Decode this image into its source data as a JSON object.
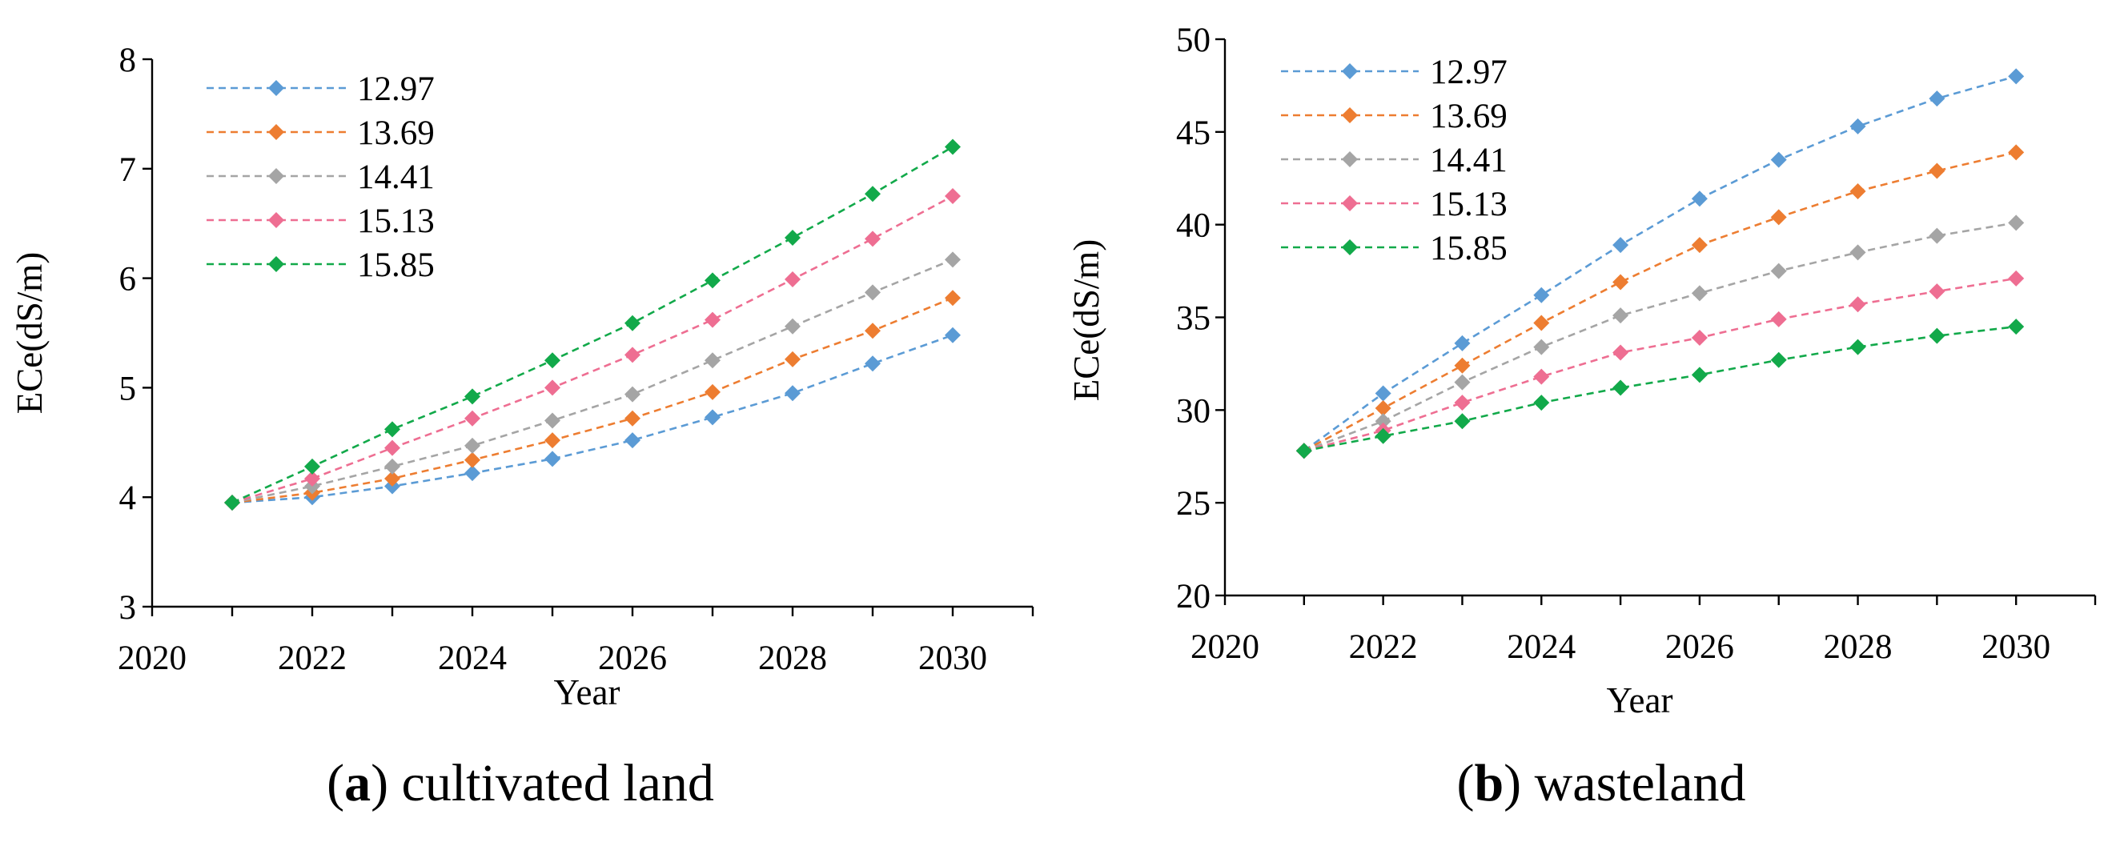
{
  "colors": {
    "blue": "#5B9BD5",
    "orange": "#ED7D31",
    "gray": "#A5A5A5",
    "pink": "#EE6E92",
    "green": "#12A94A"
  },
  "chart_data": [
    {
      "type": "line",
      "caption_letter": "a",
      "caption_rest": " cultivated land",
      "caption_open": "(",
      "caption_close": ")",
      "xlabel": "Year",
      "ylabel": "ECe(dS/m)",
      "xlim": [
        2020,
        2031
      ],
      "ylim": [
        3,
        8
      ],
      "xticks": [
        2020,
        2022,
        2024,
        2026,
        2028,
        2030
      ],
      "yticks": [
        3,
        4,
        5,
        6,
        7,
        8
      ],
      "legend_position": "top-left",
      "x": [
        2021,
        2022,
        2023,
        2024,
        2025,
        2026,
        2027,
        2028,
        2029,
        2030
      ],
      "series": [
        {
          "name": "12.97",
          "color": "#5B9BD5",
          "values": [
            3.95,
            4.0,
            4.1,
            4.22,
            4.35,
            4.52,
            4.73,
            4.95,
            5.22,
            5.48
          ]
        },
        {
          "name": "13.69",
          "color": "#ED7D31",
          "values": [
            3.95,
            4.04,
            4.17,
            4.34,
            4.52,
            4.72,
            4.96,
            5.26,
            5.52,
            5.82
          ]
        },
        {
          "name": "14.41",
          "color": "#A5A5A5",
          "values": [
            3.95,
            4.1,
            4.28,
            4.47,
            4.7,
            4.94,
            5.25,
            5.56,
            5.87,
            6.17
          ]
        },
        {
          "name": "15.13",
          "color": "#EE6E92",
          "values": [
            3.95,
            4.17,
            4.45,
            4.72,
            5.0,
            5.3,
            5.62,
            5.99,
            6.36,
            6.75
          ]
        },
        {
          "name": "15.85",
          "color": "#12A94A",
          "values": [
            3.95,
            4.28,
            4.62,
            4.92,
            5.25,
            5.59,
            5.98,
            6.37,
            6.77,
            7.2
          ]
        }
      ]
    },
    {
      "type": "line",
      "caption_letter": "b",
      "caption_rest": " wasteland",
      "caption_open": "(",
      "caption_close": ")",
      "xlabel": "Year",
      "ylabel": "ECe(dS/m)",
      "xlim": [
        2020,
        2031
      ],
      "ylim": [
        20,
        50
      ],
      "xticks": [
        2020,
        2022,
        2024,
        2026,
        2028,
        2030
      ],
      "yticks": [
        20,
        25,
        30,
        35,
        40,
        45,
        50
      ],
      "legend_position": "top-left",
      "x": [
        2021,
        2022,
        2023,
        2024,
        2025,
        2026,
        2027,
        2028,
        2029,
        2030
      ],
      "series": [
        {
          "name": "12.97",
          "color": "#5B9BD5",
          "values": [
            27.8,
            30.9,
            33.6,
            36.2,
            38.9,
            41.4,
            43.5,
            45.3,
            46.8,
            48.0
          ]
        },
        {
          "name": "13.69",
          "color": "#ED7D31",
          "values": [
            27.8,
            30.1,
            32.4,
            34.7,
            36.9,
            38.9,
            40.4,
            41.8,
            42.9,
            43.9
          ]
        },
        {
          "name": "14.41",
          "color": "#A5A5A5",
          "values": [
            27.8,
            29.4,
            31.5,
            33.4,
            35.1,
            36.3,
            37.5,
            38.5,
            39.4,
            40.1
          ]
        },
        {
          "name": "15.13",
          "color": "#EE6E92",
          "values": [
            27.8,
            28.9,
            30.4,
            31.8,
            33.1,
            33.9,
            34.9,
            35.7,
            36.4,
            37.1
          ]
        },
        {
          "name": "15.85",
          "color": "#12A94A",
          "values": [
            27.8,
            28.6,
            29.4,
            30.4,
            31.2,
            31.9,
            32.7,
            33.4,
            34.0,
            34.5
          ]
        }
      ]
    }
  ]
}
